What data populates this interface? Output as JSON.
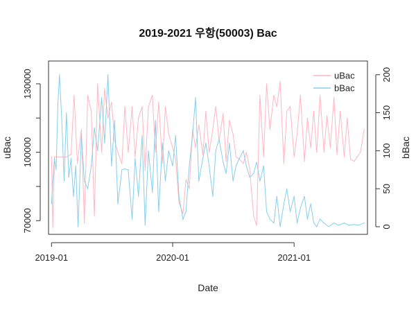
{
  "chart_data": {
    "type": "line",
    "title": "2019-2021 우항(50003) Bac",
    "xlabel": "Date",
    "ylabel_left": "uBac",
    "ylabel_right": "bBac",
    "x_ticks": [
      "2019-01",
      "2020-01",
      "2021-01"
    ],
    "x_range": [
      "2018-12-23",
      "2021-08-10"
    ],
    "y_left_ticks": [
      70000,
      100000,
      130000
    ],
    "y_left_minor_ticks": [
      70000,
      85000,
      100000,
      115000,
      130000
    ],
    "y_left_range": [
      64000,
      140000
    ],
    "y_right_ticks": [
      0,
      50,
      100,
      150,
      200
    ],
    "y_right_range": [
      -10,
      218
    ],
    "grid": false,
    "legend_position": "top-right",
    "legend": [
      {
        "label": "uBac",
        "color": "#FFB6C1"
      },
      {
        "label": "bBac",
        "color": "#87CEEB"
      }
    ],
    "series": [
      {
        "name": "uBac",
        "axis": "left",
        "color": "#FFB6C1",
        "x": [
          "2019-01-01",
          "2019-01-05",
          "2019-01-10",
          "2019-01-20",
          "2019-02-01",
          "2019-02-15",
          "2019-03-01",
          "2019-03-10",
          "2019-03-20",
          "2019-04-01",
          "2019-04-10",
          "2019-04-20",
          "2019-05-01",
          "2019-05-10",
          "2019-05-20",
          "2019-06-01",
          "2019-06-10",
          "2019-06-20",
          "2019-07-01",
          "2019-07-10",
          "2019-07-20",
          "2019-08-01",
          "2019-08-10",
          "2019-08-20",
          "2019-09-01",
          "2019-09-10",
          "2019-09-20",
          "2019-10-01",
          "2019-10-10",
          "2019-10-20",
          "2019-11-01",
          "2019-11-10",
          "2019-11-20",
          "2019-12-01",
          "2019-12-10",
          "2019-12-20",
          "2020-01-01",
          "2020-01-10",
          "2020-01-20",
          "2020-02-01",
          "2020-02-10",
          "2020-02-20",
          "2020-03-01",
          "2020-03-10",
          "2020-03-20",
          "2020-04-01",
          "2020-04-10",
          "2020-04-20",
          "2020-05-01",
          "2020-05-10",
          "2020-05-20",
          "2020-06-01",
          "2020-06-10",
          "2020-06-20",
          "2020-07-01",
          "2020-07-10",
          "2020-07-20",
          "2020-08-01",
          "2020-08-10",
          "2020-08-20",
          "2020-09-01",
          "2020-09-10",
          "2020-09-20",
          "2020-10-01",
          "2020-10-10",
          "2020-10-20",
          "2020-11-01",
          "2020-11-10",
          "2020-11-20",
          "2020-12-01",
          "2020-12-10",
          "2020-12-20",
          "2021-01-01",
          "2021-01-10",
          "2021-01-20",
          "2021-02-01",
          "2021-02-10",
          "2021-02-20",
          "2021-03-01",
          "2021-03-10",
          "2021-03-20",
          "2021-04-01",
          "2021-04-10",
          "2021-04-20",
          "2021-05-01",
          "2021-05-10",
          "2021-05-20",
          "2021-06-01",
          "2021-06-10",
          "2021-06-20",
          "2021-07-01",
          "2021-07-10",
          "2021-07-20",
          "2021-07-31"
        ],
        "y": [
          98000,
          67000,
          98000,
          98000,
          98000,
          98000,
          99000,
          125000,
          95000,
          110000,
          69000,
          125000,
          118000,
          72000,
          130000,
          100000,
          128000,
          115000,
          122000,
          105000,
          100000,
          95000,
          120000,
          100000,
          120000,
          98000,
          115000,
          120000,
          92000,
          120000,
          125000,
          100000,
          122000,
          95000,
          120000,
          108000,
          102000,
          97000,
          78000,
          73000,
          88000,
          84000,
          110000,
          102000,
          112000,
          99000,
          118000,
          100000,
          110000,
          120000,
          105000,
          117000,
          96000,
          114000,
          108000,
          98000,
          97000,
          95000,
          100000,
          93000,
          72000,
          68000,
          125000,
          98000,
          130000,
          110000,
          125000,
          120000,
          131000,
          95000,
          118000,
          120000,
          98000,
          108000,
          125000,
          96000,
          115000,
          102000,
          118000,
          100000,
          125000,
          100000,
          116000,
          102000,
          124000,
          99000,
          118000,
          98000,
          115000,
          97000,
          96000,
          98000,
          100000,
          110000
        ]
      },
      {
        "name": "bBac",
        "axis": "right",
        "color": "#87CEEB",
        "x": [
          "2019-01-01",
          "2019-01-05",
          "2019-01-10",
          "2019-01-15",
          "2019-01-20",
          "2019-01-25",
          "2019-02-01",
          "2019-02-08",
          "2019-02-15",
          "2019-02-22",
          "2019-03-01",
          "2019-03-08",
          "2019-03-15",
          "2019-03-22",
          "2019-04-01",
          "2019-04-10",
          "2019-04-20",
          "2019-05-01",
          "2019-05-10",
          "2019-05-20",
          "2019-06-01",
          "2019-06-10",
          "2019-06-20",
          "2019-07-01",
          "2019-07-10",
          "2019-07-20",
          "2019-08-01",
          "2019-08-10",
          "2019-08-20",
          "2019-09-01",
          "2019-09-10",
          "2019-09-20",
          "2019-10-01",
          "2019-10-10",
          "2019-10-20",
          "2019-11-01",
          "2019-11-10",
          "2019-11-20",
          "2019-12-01",
          "2019-12-10",
          "2019-12-20",
          "2020-01-01",
          "2020-01-10",
          "2020-01-20",
          "2020-02-01",
          "2020-02-10",
          "2020-02-20",
          "2020-03-01",
          "2020-03-10",
          "2020-03-20",
          "2020-04-01",
          "2020-04-10",
          "2020-04-20",
          "2020-05-01",
          "2020-05-10",
          "2020-05-20",
          "2020-06-01",
          "2020-06-10",
          "2020-06-20",
          "2020-07-01",
          "2020-07-10",
          "2020-07-20",
          "2020-08-01",
          "2020-08-10",
          "2020-08-20",
          "2020-09-01",
          "2020-09-10",
          "2020-09-20",
          "2020-10-01",
          "2020-10-10",
          "2020-10-20",
          "2020-11-01",
          "2020-11-10",
          "2020-11-20",
          "2020-12-01",
          "2020-12-10",
          "2020-12-20",
          "2021-01-01",
          "2021-01-10",
          "2021-01-20",
          "2021-02-01",
          "2021-02-10",
          "2021-02-20",
          "2021-03-01",
          "2021-03-10",
          "2021-03-20",
          "2021-04-01",
          "2021-04-15",
          "2021-05-01",
          "2021-05-15",
          "2021-06-01",
          "2021-06-15",
          "2021-07-01",
          "2021-07-15",
          "2021-07-31"
        ],
        "y": [
          30,
          60,
          90,
          75,
          160,
          200,
          140,
          60,
          150,
          65,
          90,
          40,
          80,
          0,
          120,
          60,
          50,
          80,
          130,
          100,
          170,
          110,
          200,
          80,
          140,
          30,
          75,
          76,
          75,
          10,
          90,
          40,
          120,
          2,
          100,
          45,
          140,
          20,
          110,
          60,
          100,
          80,
          120,
          40,
          10,
          20,
          80,
          120,
          170,
          60,
          90,
          110,
          80,
          40,
          100,
          115,
          85,
          70,
          110,
          60,
          80,
          90,
          100,
          80,
          65,
          70,
          85,
          60,
          80,
          20,
          10,
          5,
          40,
          0,
          30,
          50,
          20,
          40,
          5,
          25,
          40,
          10,
          30,
          5,
          0,
          10,
          5,
          0,
          5,
          2,
          5,
          2,
          3,
          2,
          5
        ]
      }
    ]
  }
}
